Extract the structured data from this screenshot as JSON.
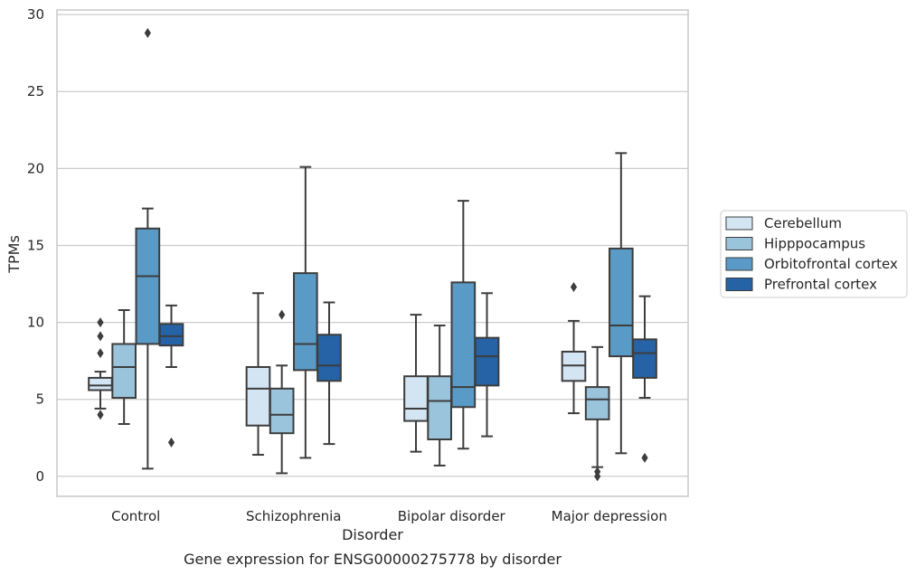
{
  "chart_data": {
    "type": "box",
    "title": "",
    "caption": "Gene expression for ENSG00000275778 by disorder",
    "xlabel": "Disorder",
    "ylabel": "TPMs",
    "ylim": [
      -1.3,
      30.3
    ],
    "yticks": [
      0,
      5,
      10,
      15,
      20,
      25,
      30
    ],
    "grid": "horizontal",
    "legend_position": "right",
    "categories": [
      "Control",
      "Schizophrenia",
      "Bipolar disorder",
      "Major depression"
    ],
    "series": [
      {
        "name": "Cerebellum",
        "color": "#d3e4f3",
        "boxes": [
          {
            "whisker_low": 4.4,
            "q1": 5.6,
            "median": 5.9,
            "q3": 6.4,
            "whisker_high": 6.8,
            "outliers": [
              4.0,
              8.0,
              9.1,
              10.0
            ]
          },
          {
            "whisker_low": 1.4,
            "q1": 3.3,
            "median": 5.7,
            "q3": 7.1,
            "whisker_high": 11.9,
            "outliers": []
          },
          {
            "whisker_low": 1.6,
            "q1": 3.6,
            "median": 4.4,
            "q3": 6.5,
            "whisker_high": 10.5,
            "outliers": []
          },
          {
            "whisker_low": 4.1,
            "q1": 6.2,
            "median": 7.2,
            "q3": 8.1,
            "whisker_high": 10.1,
            "outliers": [
              12.3
            ]
          }
        ]
      },
      {
        "name": "Hipppocampus",
        "color": "#9ac3dc",
        "boxes": [
          {
            "whisker_low": 3.4,
            "q1": 5.1,
            "median": 7.1,
            "q3": 8.6,
            "whisker_high": 10.8,
            "outliers": []
          },
          {
            "whisker_low": 0.2,
            "q1": 2.8,
            "median": 4.0,
            "q3": 5.7,
            "whisker_high": 7.2,
            "outliers": [
              10.5
            ]
          },
          {
            "whisker_low": 0.7,
            "q1": 2.4,
            "median": 4.9,
            "q3": 6.5,
            "whisker_high": 9.8,
            "outliers": []
          },
          {
            "whisker_low": 0.6,
            "q1": 3.7,
            "median": 5.0,
            "q3": 5.8,
            "whisker_high": 8.4,
            "outliers": [
              0.3,
              0.0
            ]
          }
        ]
      },
      {
        "name": "Orbitofrontal cortex",
        "color": "#5a9ac6",
        "boxes": [
          {
            "whisker_low": 0.5,
            "q1": 8.6,
            "median": 13.0,
            "q3": 16.1,
            "whisker_high": 17.4,
            "outliers": [
              28.8
            ]
          },
          {
            "whisker_low": 1.2,
            "q1": 6.9,
            "median": 8.6,
            "q3": 13.2,
            "whisker_high": 20.1,
            "outliers": []
          },
          {
            "whisker_low": 1.8,
            "q1": 4.5,
            "median": 5.8,
            "q3": 12.6,
            "whisker_high": 17.9,
            "outliers": []
          },
          {
            "whisker_low": 1.5,
            "q1": 7.8,
            "median": 9.8,
            "q3": 14.8,
            "whisker_high": 21.0,
            "outliers": []
          }
        ]
      },
      {
        "name": "Prefrontal cortex",
        "color": "#2563a6",
        "boxes": [
          {
            "whisker_low": 7.1,
            "q1": 8.5,
            "median": 9.1,
            "q3": 9.9,
            "whisker_high": 11.1,
            "outliers": [
              2.2
            ]
          },
          {
            "whisker_low": 2.1,
            "q1": 6.2,
            "median": 7.2,
            "q3": 9.2,
            "whisker_high": 11.3,
            "outliers": []
          },
          {
            "whisker_low": 2.6,
            "q1": 5.9,
            "median": 7.8,
            "q3": 9.0,
            "whisker_high": 11.9,
            "outliers": []
          },
          {
            "whisker_low": 5.1,
            "q1": 6.4,
            "median": 8.0,
            "q3": 8.9,
            "whisker_high": 11.7,
            "outliers": [
              1.2
            ]
          }
        ]
      }
    ]
  }
}
